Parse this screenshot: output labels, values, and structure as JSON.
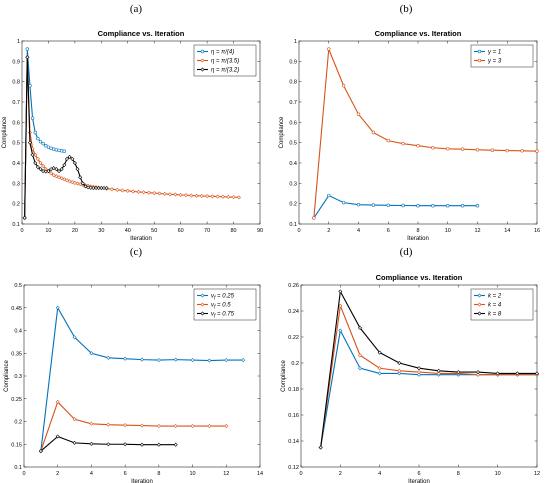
{
  "figure": {
    "panel_letters": [
      "(a)",
      "(b)",
      "(c)",
      "(d)"
    ]
  },
  "chart_data": [
    {
      "panel_id": "a",
      "type": "line",
      "title": "Compliance vs. Iteration",
      "xlabel": "Iteration",
      "ylabel": "Compliance",
      "xlim": [
        0,
        90
      ],
      "ylim": [
        0.1,
        1.0
      ],
      "xticks": [
        0,
        10,
        20,
        30,
        40,
        50,
        60,
        70,
        80,
        90
      ],
      "yticks": [
        0.1,
        0.2,
        0.3,
        0.4,
        0.5,
        0.6,
        0.7,
        0.8,
        0.9,
        1
      ],
      "legend_position": "top-right",
      "series": [
        {
          "name": "η = π/(4)",
          "color": "#0072BD",
          "marker": "circle",
          "x": [
            1,
            2,
            3,
            4,
            5,
            6,
            7,
            8,
            9,
            10,
            11,
            12,
            13,
            14,
            15,
            16
          ],
          "y": [
            0.13,
            0.96,
            0.78,
            0.62,
            0.55,
            0.52,
            0.505,
            0.495,
            0.485,
            0.478,
            0.472,
            0.468,
            0.465,
            0.462,
            0.46,
            0.458
          ]
        },
        {
          "name": "η = π/(3.5)",
          "color": "#D95319",
          "marker": "diamond",
          "x": [
            1,
            2,
            3,
            4,
            5,
            6,
            7,
            8,
            9,
            10,
            11,
            12,
            13,
            14,
            15,
            16,
            17,
            18,
            19,
            20,
            21,
            22,
            23,
            24,
            25,
            26,
            27,
            28,
            29,
            30,
            32,
            34,
            36,
            38,
            40,
            42,
            44,
            46,
            48,
            50,
            52,
            54,
            56,
            58,
            60,
            62,
            64,
            66,
            68,
            70,
            72,
            74,
            76,
            78,
            80,
            82
          ],
          "y": [
            0.13,
            0.92,
            0.55,
            0.47,
            0.44,
            0.42,
            0.4,
            0.385,
            0.37,
            0.36,
            0.35,
            0.34,
            0.335,
            0.33,
            0.325,
            0.32,
            0.315,
            0.31,
            0.306,
            0.302,
            0.299,
            0.296,
            0.293,
            0.29,
            0.288,
            0.285,
            0.283,
            0.281,
            0.279,
            0.277,
            0.274,
            0.271,
            0.268,
            0.265,
            0.263,
            0.26,
            0.258,
            0.256,
            0.254,
            0.252,
            0.25,
            0.248,
            0.246,
            0.245,
            0.243,
            0.242,
            0.24,
            0.239,
            0.238,
            0.237,
            0.236,
            0.235,
            0.234,
            0.233,
            0.232,
            0.231
          ]
        },
        {
          "name": "η = π/(3.2)",
          "color": "#000000",
          "marker": "diamond",
          "x": [
            1,
            2,
            3,
            4,
            5,
            6,
            7,
            8,
            9,
            10,
            11,
            12,
            13,
            14,
            15,
            16,
            17,
            18,
            19,
            20,
            21,
            22,
            23,
            24,
            25,
            26,
            27,
            28,
            29,
            30,
            31,
            32
          ],
          "y": [
            0.13,
            0.92,
            0.5,
            0.44,
            0.4,
            0.38,
            0.37,
            0.36,
            0.358,
            0.36,
            0.37,
            0.375,
            0.37,
            0.36,
            0.37,
            0.39,
            0.42,
            0.43,
            0.42,
            0.4,
            0.37,
            0.33,
            0.3,
            0.285,
            0.28,
            0.278,
            0.277,
            0.277,
            0.277,
            0.277,
            0.277,
            0.277
          ]
        }
      ]
    },
    {
      "panel_id": "b",
      "type": "line",
      "title": "Compliance vs. Iteration",
      "xlabel": "Iteration",
      "ylabel": "Compliance",
      "xlim": [
        0,
        16
      ],
      "ylim": [
        0.1,
        1.0
      ],
      "xticks": [
        0,
        2,
        4,
        6,
        8,
        10,
        12,
        14,
        16
      ],
      "yticks": [
        0.1,
        0.2,
        0.3,
        0.4,
        0.5,
        0.6,
        0.7,
        0.8,
        0.9,
        1
      ],
      "legend_position": "top-right",
      "series": [
        {
          "name": "γ = 1",
          "color": "#0072BD",
          "marker": "circle",
          "x": [
            1,
            2,
            3,
            4,
            5,
            6,
            7,
            8,
            9,
            10,
            11,
            12
          ],
          "y": [
            0.13,
            0.24,
            0.205,
            0.195,
            0.193,
            0.192,
            0.191,
            0.19,
            0.19,
            0.19,
            0.19,
            0.19
          ]
        },
        {
          "name": "γ = 3",
          "color": "#D95319",
          "marker": "circle",
          "x": [
            1,
            2,
            3,
            4,
            5,
            6,
            7,
            8,
            9,
            10,
            11,
            12,
            13,
            14,
            15,
            16
          ],
          "y": [
            0.13,
            0.96,
            0.78,
            0.64,
            0.55,
            0.51,
            0.495,
            0.485,
            0.475,
            0.47,
            0.468,
            0.465,
            0.463,
            0.461,
            0.46,
            0.458
          ]
        }
      ]
    },
    {
      "panel_id": "c",
      "type": "line",
      "title": "",
      "xlabel": "Iteration",
      "ylabel": "Compliance",
      "xlim": [
        0,
        14
      ],
      "ylim": [
        0.1,
        0.5
      ],
      "xticks": [
        0,
        2,
        4,
        6,
        8,
        10,
        12,
        14
      ],
      "yticks": [
        0.1,
        0.15,
        0.2,
        0.25,
        0.3,
        0.35,
        0.4,
        0.45,
        0.5
      ],
      "legend_position": "top-right",
      "series": [
        {
          "name": "v_f = 0.25",
          "color": "#0072BD",
          "marker": "diamond",
          "x": [
            1,
            2,
            3,
            4,
            5,
            6,
            7,
            8,
            9,
            10,
            11,
            12,
            13
          ],
          "y": [
            0.135,
            0.45,
            0.385,
            0.35,
            0.34,
            0.338,
            0.336,
            0.335,
            0.336,
            0.335,
            0.334,
            0.335,
            0.335
          ]
        },
        {
          "name": "v_f = 0.5",
          "color": "#D95319",
          "marker": "diamond",
          "x": [
            1,
            2,
            3,
            4,
            5,
            6,
            7,
            8,
            9,
            10,
            11,
            12
          ],
          "y": [
            0.135,
            0.243,
            0.205,
            0.195,
            0.193,
            0.192,
            0.191,
            0.19,
            0.19,
            0.19,
            0.19,
            0.19
          ]
        },
        {
          "name": "v_f = 0.75",
          "color": "#000000",
          "marker": "diamond",
          "x": [
            1,
            2,
            3,
            4,
            5,
            6,
            7,
            8,
            9
          ],
          "y": [
            0.135,
            0.167,
            0.153,
            0.151,
            0.15,
            0.15,
            0.149,
            0.149,
            0.149
          ]
        }
      ]
    },
    {
      "panel_id": "d",
      "type": "line",
      "title": "Compliance vs. Iteration",
      "xlabel": "Iteration",
      "ylabel": "Compliance",
      "xlim": [
        0,
        12
      ],
      "ylim": [
        0.12,
        0.26
      ],
      "xticks": [
        0,
        2,
        4,
        6,
        8,
        10,
        12
      ],
      "yticks": [
        0.12,
        0.14,
        0.16,
        0.18,
        0.2,
        0.22,
        0.24,
        0.26
      ],
      "legend_position": "top-right",
      "series": [
        {
          "name": "k = 2",
          "color": "#0072BD",
          "marker": "diamond",
          "x": [
            1,
            2,
            3,
            4,
            5,
            6,
            7,
            8,
            9,
            10,
            11,
            12
          ],
          "y": [
            0.135,
            0.225,
            0.196,
            0.192,
            0.192,
            0.191,
            0.191,
            0.191,
            0.191,
            0.191,
            0.191,
            0.191
          ]
        },
        {
          "name": "k = 4",
          "color": "#D95319",
          "marker": "diamond",
          "x": [
            1,
            2,
            3,
            4,
            5,
            6,
            7,
            8,
            9,
            10,
            11,
            12
          ],
          "y": [
            0.135,
            0.244,
            0.206,
            0.196,
            0.194,
            0.193,
            0.192,
            0.192,
            0.191,
            0.191,
            0.191,
            0.191
          ]
        },
        {
          "name": "k = 8",
          "color": "#000000",
          "marker": "diamond",
          "x": [
            1,
            2,
            3,
            4,
            5,
            6,
            7,
            8,
            9,
            10,
            11,
            12
          ],
          "y": [
            0.135,
            0.255,
            0.227,
            0.208,
            0.2,
            0.196,
            0.194,
            0.193,
            0.193,
            0.192,
            0.192,
            0.192
          ]
        }
      ]
    }
  ]
}
